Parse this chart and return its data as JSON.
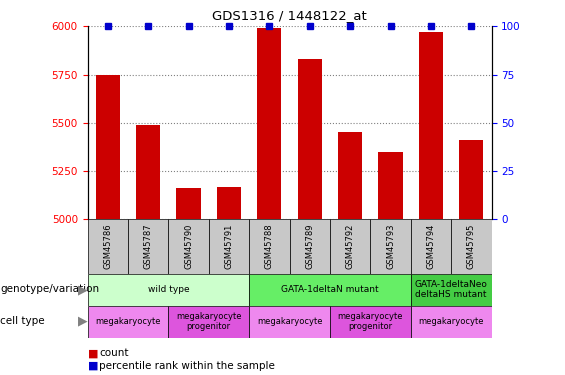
{
  "title": "GDS1316 / 1448122_at",
  "samples": [
    "GSM45786",
    "GSM45787",
    "GSM45790",
    "GSM45791",
    "GSM45788",
    "GSM45789",
    "GSM45792",
    "GSM45793",
    "GSM45794",
    "GSM45795"
  ],
  "counts": [
    5750,
    5490,
    5160,
    5170,
    5990,
    5830,
    5450,
    5350,
    5970,
    5410
  ],
  "percentile": [
    100,
    100,
    100,
    100,
    100,
    100,
    100,
    100,
    100,
    100
  ],
  "ylim_left": [
    5000,
    6000
  ],
  "ylim_right": [
    0,
    100
  ],
  "yticks_left": [
    5000,
    5250,
    5500,
    5750,
    6000
  ],
  "yticks_right": [
    0,
    25,
    50,
    75,
    100
  ],
  "bar_color": "#cc0000",
  "dot_color": "#0000cc",
  "genotype_groups": [
    {
      "label": "wild type",
      "start": 0,
      "end": 4,
      "color": "#ccffcc"
    },
    {
      "label": "GATA-1deltaN mutant",
      "start": 4,
      "end": 8,
      "color": "#66ee66"
    },
    {
      "label": "GATA-1deltaNeo\ndeltaHS mutant",
      "start": 8,
      "end": 10,
      "color": "#44cc44"
    }
  ],
  "cell_type_groups": [
    {
      "label": "megakaryocyte",
      "start": 0,
      "end": 2,
      "color": "#ee88ee"
    },
    {
      "label": "megakaryocyte\nprogenitor",
      "start": 2,
      "end": 4,
      "color": "#dd55dd"
    },
    {
      "label": "megakaryocyte",
      "start": 4,
      "end": 6,
      "color": "#ee88ee"
    },
    {
      "label": "megakaryocyte\nprogenitor",
      "start": 6,
      "end": 8,
      "color": "#dd55dd"
    },
    {
      "label": "megakaryocyte",
      "start": 8,
      "end": 10,
      "color": "#ee88ee"
    }
  ],
  "geno_label": "genotype/variation",
  "cell_label": "cell type",
  "legend_count_color": "#cc0000",
  "legend_percentile_color": "#0000cc",
  "bg_color": "#ffffff",
  "tick_label_bg": "#c8c8c8"
}
